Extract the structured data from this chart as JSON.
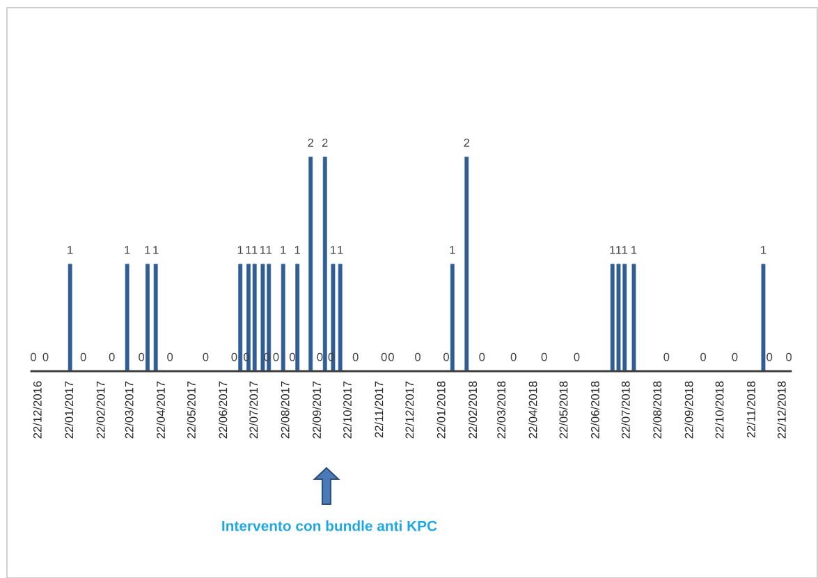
{
  "chart_data": {
    "type": "bar",
    "color": "#2f5d94",
    "data_labels": true,
    "tick_labels": "x",
    "ylim": [
      0,
      3.4
    ],
    "x": [
      "2016-12-17",
      "2016-12-29",
      "2017-01-22",
      "2017-02-04",
      "2017-03-04",
      "2017-03-19",
      "2017-04-02",
      "2017-04-08",
      "2017-04-16",
      "2017-04-30",
      "2017-06-04",
      "2017-07-02",
      "2017-07-08",
      "2017-07-14",
      "2017-07-16",
      "2017-07-22",
      "2017-07-30",
      "2017-08-03",
      "2017-08-05",
      "2017-08-12",
      "2017-08-19",
      "2017-08-28",
      "2017-09-02",
      "2017-09-15",
      "2017-09-24",
      "2017-09-29",
      "2017-10-05",
      "2017-10-07",
      "2017-10-14",
      "2017-10-29",
      "2017-11-26",
      "2017-12-03",
      "2017-12-29",
      "2018-01-26",
      "2018-02-01",
      "2018-02-15",
      "2018-03-02",
      "2018-04-02",
      "2018-05-02",
      "2018-06-03",
      "2018-07-08",
      "2018-07-14",
      "2018-07-20",
      "2018-07-29",
      "2018-08-30",
      "2018-10-05",
      "2018-11-05",
      "2018-12-03",
      "2018-12-09",
      "2018-12-28"
    ],
    "values": [
      0,
      0,
      1,
      0,
      0,
      1,
      0,
      1,
      1,
      0,
      0,
      0,
      1,
      0,
      1,
      1,
      1,
      0,
      1,
      0,
      1,
      0,
      1,
      2,
      0,
      2,
      0,
      1,
      1,
      0,
      0,
      0,
      0,
      0,
      1,
      2,
      0,
      0,
      0,
      0,
      1,
      1,
      1,
      1,
      0,
      0,
      0,
      1,
      0,
      0
    ],
    "xlim": [
      "2016-12-15",
      "2018-12-30"
    ],
    "xticks": [
      {
        "value": "2016-12-22",
        "label": "22/12/2016"
      },
      {
        "value": "2017-01-22",
        "label": "22/01/2017"
      },
      {
        "value": "2017-02-22",
        "label": "22/02/2017"
      },
      {
        "value": "2017-03-22",
        "label": "22/03/2017"
      },
      {
        "value": "2017-04-22",
        "label": "22/04/2017"
      },
      {
        "value": "2017-05-22",
        "label": "22/05/2017"
      },
      {
        "value": "2017-06-22",
        "label": "22/06/2017"
      },
      {
        "value": "2017-07-22",
        "label": "22/07/2017"
      },
      {
        "value": "2017-08-22",
        "label": "22/08/2017"
      },
      {
        "value": "2017-09-22",
        "label": "22/09/2017"
      },
      {
        "value": "2017-10-22",
        "label": "22/10/2017"
      },
      {
        "value": "2017-11-22",
        "label": "22/11/2017"
      },
      {
        "value": "2017-12-22",
        "label": "22/12/2017"
      },
      {
        "value": "2018-01-22",
        "label": "22/01/2018"
      },
      {
        "value": "2018-02-22",
        "label": "22/02/2018"
      },
      {
        "value": "2018-03-22",
        "label": "22/03/2018"
      },
      {
        "value": "2018-04-22",
        "label": "22/04/2018"
      },
      {
        "value": "2018-05-22",
        "label": "22/05/2018"
      },
      {
        "value": "2018-06-22",
        "label": "22/06/2018"
      },
      {
        "value": "2018-07-22",
        "label": "22/07/2018"
      },
      {
        "value": "2018-08-22",
        "label": "22/08/2018"
      },
      {
        "value": "2018-09-22",
        "label": "22/09/2018"
      },
      {
        "value": "2018-10-22",
        "label": "22/10/2018"
      },
      {
        "value": "2018-11-22",
        "label": "22/11/2018"
      },
      {
        "value": "2018-12-22",
        "label": "22/12/2018"
      }
    ],
    "annotations": [
      "Intervento con bundle anti KPC"
    ]
  }
}
